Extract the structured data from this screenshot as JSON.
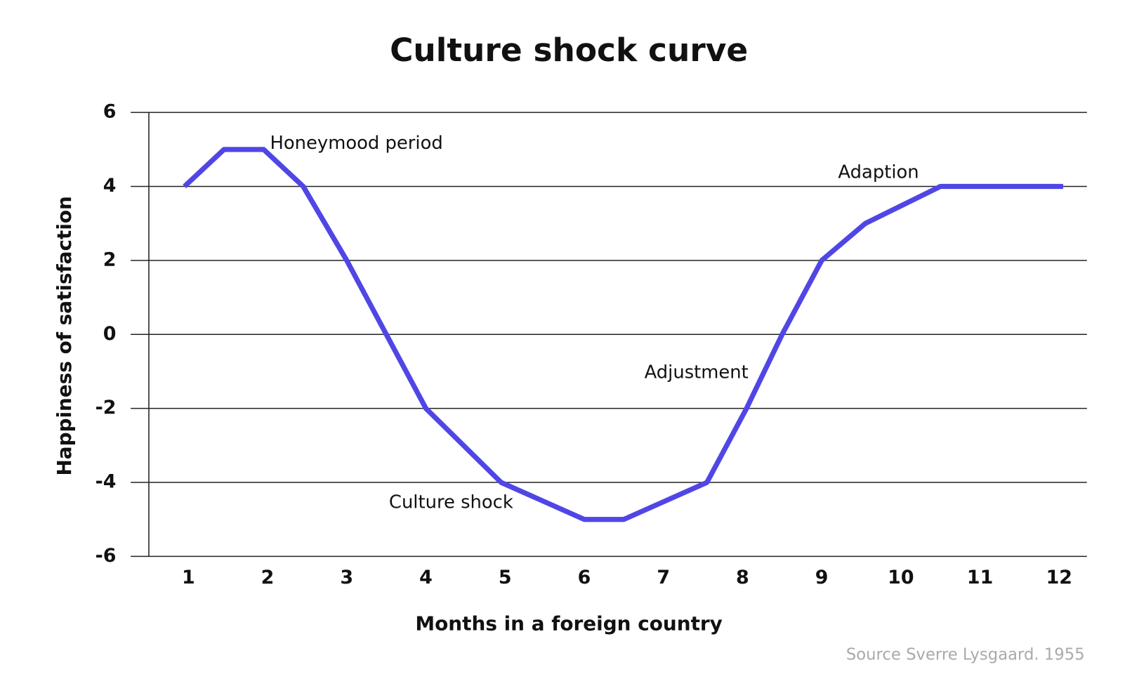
{
  "chart_data": {
    "type": "line",
    "title": "Culture shock curve",
    "x_label": "Months in a foreign country",
    "y_label": "Happiness of satisfaction",
    "source": "Source Sverre Lysgaard. 1955",
    "series": [
      {
        "color": "#5046e6",
        "x": [
          0.95,
          1.45,
          1.95,
          2.45,
          3,
          3.5,
          4,
          4.95,
          6,
          6.5,
          7.55,
          8.05,
          8.5,
          9,
          9.55,
          10.5,
          12.05
        ],
        "values": [
          4,
          5,
          5,
          4,
          2,
          0,
          -2,
          -4,
          -5,
          -5,
          -4,
          -2,
          0,
          2,
          3,
          4,
          4
        ]
      }
    ],
    "annotations": [
      "Honeymood period",
      "Culture shock",
      "Adjustment",
      "Adaption"
    ],
    "xlim": [
      0.5,
      12.35
    ],
    "xticks": [
      1,
      2,
      3,
      4,
      5,
      6,
      7,
      8,
      9,
      10,
      11,
      12
    ],
    "ylim": [
      -6,
      6
    ],
    "yticks": [
      -6,
      -4,
      -2,
      0,
      2,
      4,
      6
    ],
    "grid": true
  }
}
